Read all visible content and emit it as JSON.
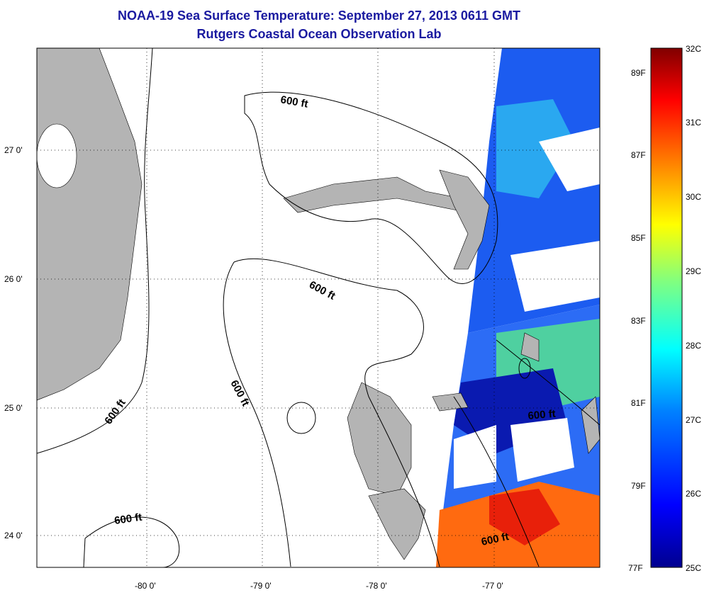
{
  "title_line1": "NOAA-19 Sea Surface Temperature:  September 27, 2013 0611 GMT",
  "title_line2": "Rutgers Coastal Ocean Observation Lab",
  "lat_ticks": [
    {
      "value": 27,
      "label": "27 0'"
    },
    {
      "value": 26,
      "label": "26 0'"
    },
    {
      "value": 25,
      "label": "25 0'"
    },
    {
      "value": 24,
      "label": "24 0'"
    }
  ],
  "lon_ticks": [
    {
      "value": -80,
      "label": "-80 0'"
    },
    {
      "value": -79,
      "label": "-79 0'"
    },
    {
      "value": -78,
      "label": "-78 0'"
    },
    {
      "value": -77,
      "label": "-77 0'"
    }
  ],
  "contour_labels": [
    "600 ft",
    "600 ft",
    "600 ft",
    "600 ft",
    "600 ft",
    "600 ft",
    "600 ft"
  ],
  "colorbar": {
    "min_c": 25,
    "max_c": 32,
    "celsius_labels": [
      "32C",
      "31C",
      "30C",
      "29C",
      "28C",
      "27C",
      "26C",
      "25C"
    ],
    "fahrenheit_labels": [
      "89F",
      "87F",
      "85F",
      "83F",
      "81F",
      "79F",
      "77F"
    ],
    "colors": [
      "#00008f",
      "#0000ff",
      "#0080ff",
      "#00ffff",
      "#80ff80",
      "#ffff00",
      "#ff8000",
      "#ff0000",
      "#800000"
    ]
  },
  "colors": {
    "land": "#b4b4b4",
    "title": "#1a1aa0",
    "cloud": "#ffffff"
  }
}
